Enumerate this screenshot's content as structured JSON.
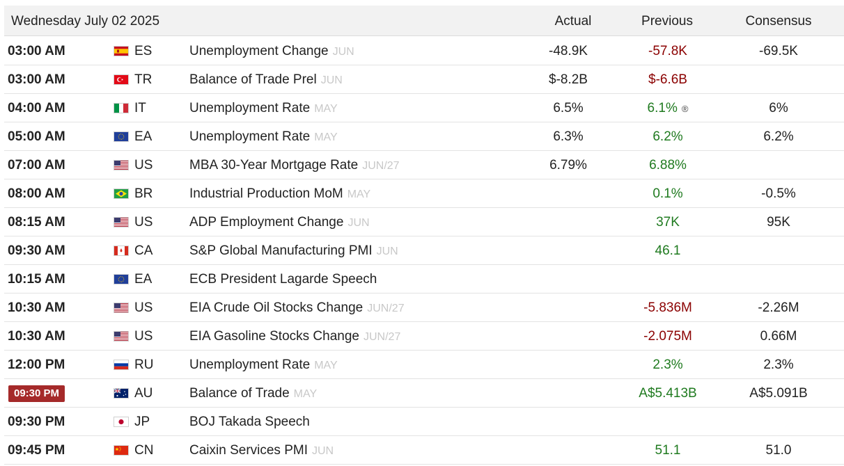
{
  "header": {
    "date": "Wednesday July 02 2025",
    "col_actual": "Actual",
    "col_previous": "Previous",
    "col_consensus": "Consensus"
  },
  "colors": {
    "negative": "#8b0000",
    "positive": "#1f7a1f",
    "highlight": "#a52a2a"
  },
  "rows": [
    {
      "time": "03:00 AM",
      "country": "ES",
      "event": "Unemployment Change",
      "period": "JUN",
      "actual": "-48.9K",
      "previous": "-57.8K",
      "prev_color": "red",
      "consensus": "-69.5K"
    },
    {
      "time": "03:00 AM",
      "country": "TR",
      "event": "Balance of Trade Prel",
      "period": "JUN",
      "actual": "$-8.2B",
      "previous": "$-6.6B",
      "prev_color": "red",
      "consensus": ""
    },
    {
      "time": "04:00 AM",
      "country": "IT",
      "event": "Unemployment Rate",
      "period": "MAY",
      "actual": "6.5%",
      "previous": "6.1%",
      "prev_color": "green",
      "revised_mark": "®",
      "consensus": "6%"
    },
    {
      "time": "05:00 AM",
      "country": "EA",
      "event": "Unemployment Rate",
      "period": "MAY",
      "actual": "6.3%",
      "previous": "6.2%",
      "prev_color": "green",
      "consensus": "6.2%"
    },
    {
      "time": "07:00 AM",
      "country": "US",
      "event": "MBA 30-Year Mortgage Rate",
      "period": "JUN/27",
      "actual": "6.79%",
      "previous": "6.88%",
      "prev_color": "green",
      "consensus": ""
    },
    {
      "time": "08:00 AM",
      "country": "BR",
      "event": "Industrial Production MoM",
      "period": "MAY",
      "actual": "",
      "previous": "0.1%",
      "prev_color": "green",
      "consensus": "-0.5%"
    },
    {
      "time": "08:15 AM",
      "country": "US",
      "event": "ADP Employment Change",
      "period": "JUN",
      "actual": "",
      "previous": "37K",
      "prev_color": "green",
      "consensus": "95K"
    },
    {
      "time": "09:30 AM",
      "country": "CA",
      "event": "S&P Global Manufacturing PMI",
      "period": "JUN",
      "actual": "",
      "previous": "46.1",
      "prev_color": "green",
      "consensus": ""
    },
    {
      "time": "10:15 AM",
      "country": "EA",
      "event": "ECB President Lagarde Speech",
      "period": "",
      "actual": "",
      "previous": "",
      "prev_color": "green",
      "consensus": ""
    },
    {
      "time": "10:30 AM",
      "country": "US",
      "event": "EIA Crude Oil Stocks Change",
      "period": "JUN/27",
      "actual": "",
      "previous": "-5.836M",
      "prev_color": "red",
      "consensus": "-2.26M"
    },
    {
      "time": "10:30 AM",
      "country": "US",
      "event": "EIA Gasoline Stocks Change",
      "period": "JUN/27",
      "actual": "",
      "previous": "-2.075M",
      "prev_color": "red",
      "consensus": "0.66M"
    },
    {
      "time": "12:00 PM",
      "country": "RU",
      "event": "Unemployment Rate",
      "period": "MAY",
      "actual": "",
      "previous": "2.3%",
      "prev_color": "green",
      "consensus": "2.3%"
    },
    {
      "time": "09:30 PM",
      "country": "AU",
      "event": "Balance of Trade",
      "period": "MAY",
      "actual": "",
      "previous": "A$5.413B",
      "prev_color": "green",
      "consensus": "A$5.091B",
      "highlight": true
    },
    {
      "time": "09:30 PM",
      "country": "JP",
      "event": "BOJ Takada Speech",
      "period": "",
      "actual": "",
      "previous": "",
      "prev_color": "green",
      "consensus": ""
    },
    {
      "time": "09:45 PM",
      "country": "CN",
      "event": "Caixin Services PMI",
      "period": "JUN",
      "actual": "",
      "previous": "51.1",
      "prev_color": "green",
      "consensus": "51.0"
    }
  ]
}
